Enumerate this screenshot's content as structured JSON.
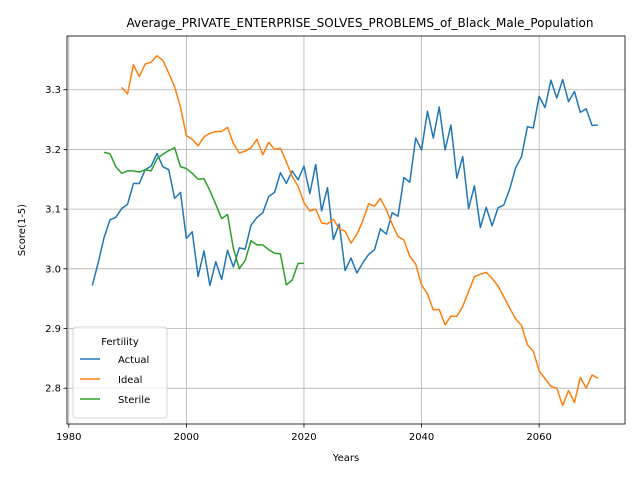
{
  "chart_data": {
    "type": "line",
    "title": "Average_PRIVATE_ENTERPRISE_SOLVES_PROBLEMS_of_Black_Male_Population",
    "xlabel": "Years",
    "ylabel": "Score(1-5)",
    "xlim": [
      1979.7,
      2074.6
    ],
    "ylim": [
      2.74,
      3.39
    ],
    "xticks": [
      1980,
      2000,
      2020,
      2040,
      2060
    ],
    "yticks": [
      2.8,
      2.9,
      3.0,
      3.1,
      3.2,
      3.3
    ],
    "ytick_labels": [
      "2.8",
      "2.9",
      "3.0",
      "3.1",
      "3.2",
      "3.3"
    ],
    "grid": true,
    "legend": {
      "title": "Fertility",
      "position": "lower-left"
    },
    "series": [
      {
        "name": "Actual",
        "color": "#1f77b4",
        "x": [
          1984,
          1985,
          1986,
          1987,
          1988,
          1989,
          1990,
          1991,
          1992,
          1993,
          1994,
          1995,
          1996,
          1997,
          1998,
          1999,
          2000,
          2001,
          2002,
          2003,
          2004,
          2005,
          2006,
          2007,
          2008,
          2009,
          2010,
          2011,
          2012,
          2013,
          2014,
          2015,
          2016,
          2017,
          2018,
          2019,
          2020,
          2021,
          2022,
          2023,
          2024,
          2025,
          2026,
          2027,
          2028,
          2029,
          2030,
          2031,
          2032,
          2033,
          2034,
          2035,
          2036,
          2037,
          2038,
          2039,
          2040,
          2041,
          2042,
          2043,
          2044,
          2045,
          2046,
          2047,
          2048,
          2049,
          2050,
          2051,
          2052,
          2053,
          2054,
          2055,
          2056,
          2057,
          2058,
          2059,
          2060,
          2061,
          2062,
          2063,
          2064,
          2065,
          2066,
          2067,
          2068,
          2069,
          2070
        ],
        "values": [
          2.972,
          3.01,
          3.052,
          3.082,
          3.086,
          3.101,
          3.108,
          3.143,
          3.143,
          3.166,
          3.172,
          3.193,
          3.171,
          3.166,
          3.118,
          3.128,
          3.051,
          3.062,
          2.987,
          3.03,
          2.972,
          3.012,
          2.982,
          3.031,
          3.003,
          3.035,
          3.033,
          3.073,
          3.086,
          3.094,
          3.121,
          3.128,
          3.161,
          3.143,
          3.164,
          3.149,
          3.172,
          3.126,
          3.175,
          3.097,
          3.136,
          3.049,
          3.075,
          2.997,
          3.018,
          2.993,
          3.01,
          3.024,
          3.032,
          3.067,
          3.058,
          3.094,
          3.088,
          3.153,
          3.145,
          3.219,
          3.199,
          3.264,
          3.219,
          3.271,
          3.199,
          3.241,
          3.152,
          3.188,
          3.101,
          3.139,
          3.069,
          3.103,
          3.072,
          3.102,
          3.107,
          3.134,
          3.169,
          3.188,
          3.238,
          3.236,
          3.289,
          3.27,
          3.316,
          3.286,
          3.317,
          3.28,
          3.297,
          3.262,
          3.268,
          3.24,
          3.241
        ]
      },
      {
        "name": "Ideal",
        "color": "#ff7f0e",
        "x": [
          1989,
          1990,
          1991,
          1992,
          1993,
          1994,
          1995,
          1996,
          1997,
          1998,
          1999,
          2000,
          2001,
          2002,
          2003,
          2004,
          2005,
          2006,
          2007,
          2008,
          2009,
          2010,
          2011,
          2012,
          2013,
          2014,
          2015,
          2016,
          2017,
          2018,
          2019,
          2020,
          2021,
          2022,
          2023,
          2024,
          2025,
          2026,
          2027,
          2028,
          2029,
          2030,
          2031,
          2032,
          2033,
          2034,
          2035,
          2036,
          2037,
          2038,
          2039,
          2040,
          2041,
          2042,
          2043,
          2044,
          2045,
          2046,
          2047,
          2048,
          2049,
          2050,
          2051,
          2052,
          2053,
          2054,
          2055,
          2056,
          2057,
          2058,
          2059,
          2060,
          2061,
          2062,
          2063,
          2064,
          2065,
          2066,
          2067,
          2068,
          2069,
          2070
        ],
        "values": [
          3.304,
          3.293,
          3.342,
          3.322,
          3.343,
          3.346,
          3.357,
          3.349,
          3.328,
          3.305,
          3.271,
          3.223,
          3.217,
          3.206,
          3.221,
          3.227,
          3.23,
          3.23,
          3.237,
          3.21,
          3.194,
          3.197,
          3.203,
          3.217,
          3.191,
          3.212,
          3.2,
          3.202,
          3.179,
          3.155,
          3.138,
          3.111,
          3.097,
          3.1,
          3.077,
          3.075,
          3.083,
          3.067,
          3.063,
          3.043,
          3.058,
          3.08,
          3.109,
          3.105,
          3.118,
          3.099,
          3.075,
          3.054,
          3.048,
          3.021,
          3.008,
          2.973,
          2.958,
          2.931,
          2.932,
          2.906,
          2.921,
          2.92,
          2.937,
          2.962,
          2.987,
          2.991,
          2.994,
          2.984,
          2.971,
          2.953,
          2.934,
          2.916,
          2.905,
          2.873,
          2.862,
          2.829,
          2.816,
          2.803,
          2.8,
          2.771,
          2.796,
          2.776,
          2.818,
          2.8,
          2.822,
          2.817
        ]
      },
      {
        "name": "Sterile",
        "color": "#2ca02c",
        "x": [
          1986,
          1987,
          1988,
          1989,
          1990,
          1991,
          1992,
          1993,
          1994,
          1995,
          1996,
          1997,
          1998,
          1999,
          2000,
          2001,
          2002,
          2003,
          2004,
          2005,
          2006,
          2007,
          2008,
          2009,
          2010,
          2011,
          2012,
          2013,
          2014,
          2015,
          2016,
          2017,
          2018,
          2019,
          2020
        ],
        "values": [
          3.195,
          3.193,
          3.171,
          3.16,
          3.164,
          3.164,
          3.162,
          3.166,
          3.164,
          3.184,
          3.192,
          3.198,
          3.203,
          3.171,
          3.168,
          3.16,
          3.15,
          3.151,
          3.131,
          3.108,
          3.084,
          3.091,
          3.034,
          3.0,
          3.014,
          3.047,
          3.04,
          3.04,
          3.032,
          3.026,
          3.025,
          2.973,
          2.981,
          3.009,
          3.009
        ]
      }
    ]
  }
}
